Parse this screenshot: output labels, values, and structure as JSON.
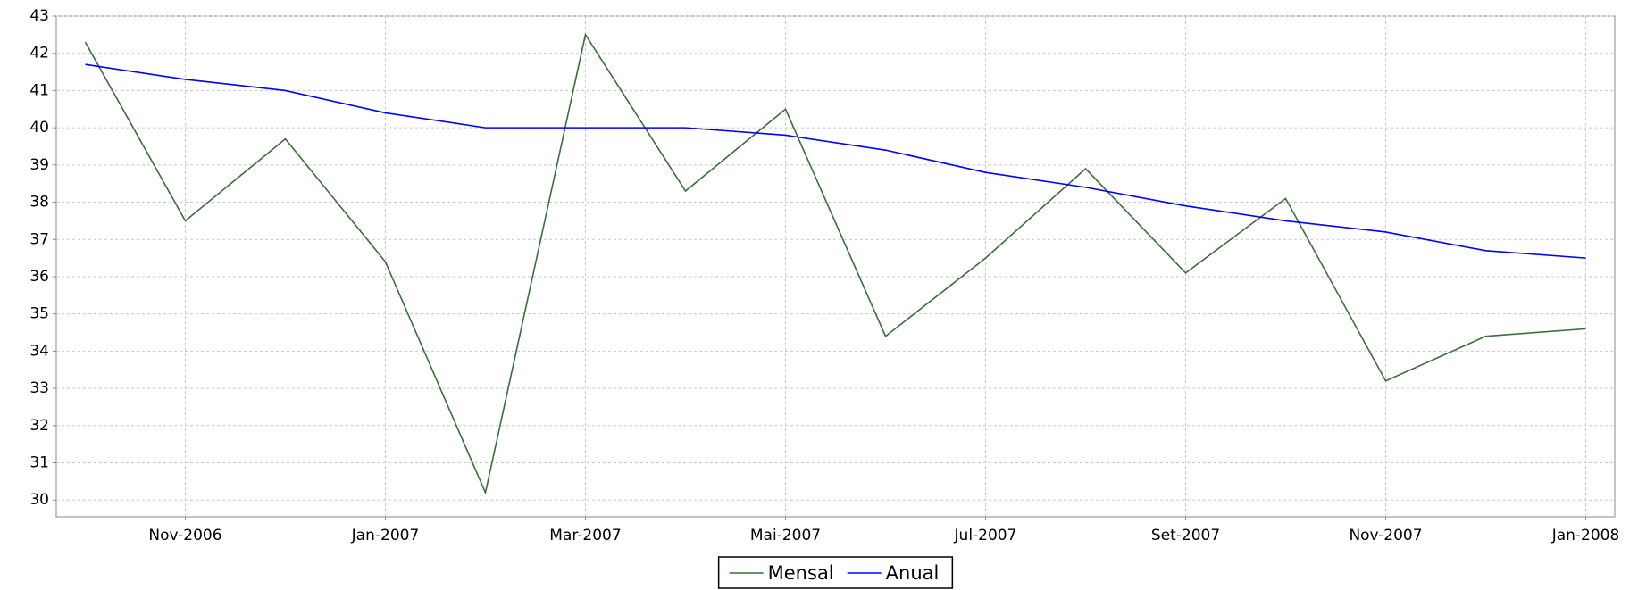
{
  "chart_data": {
    "type": "line",
    "categories": [
      null,
      "Nov-2006",
      null,
      "Jan-2007",
      null,
      "Mar-2007",
      null,
      "Mai-2007",
      null,
      "Jul-2007",
      null,
      "Set-2007",
      null,
      "Nov-2007",
      null,
      "Jan-2008"
    ],
    "series": [
      {
        "name": "Mensal",
        "color": "#3f6b3f",
        "values": [
          42.3,
          37.5,
          39.7,
          36.4,
          30.2,
          42.5,
          38.3,
          40.5,
          34.4,
          36.5,
          38.9,
          36.1,
          38.1,
          33.2,
          34.4,
          34.6
        ]
      },
      {
        "name": "Anual",
        "color": "#0000ff",
        "values": [
          41.7,
          41.3,
          41.0,
          40.4,
          40.0,
          40.0,
          40.0,
          39.8,
          39.4,
          38.8,
          38.4,
          37.9,
          37.5,
          37.2,
          36.7,
          36.5
        ]
      }
    ],
    "ylim": [
      29.55,
      43
    ],
    "yticks": [
      30,
      31,
      32,
      33,
      34,
      35,
      36,
      37,
      38,
      39,
      40,
      41,
      42,
      43
    ],
    "grid": true,
    "legend": "bottom"
  }
}
